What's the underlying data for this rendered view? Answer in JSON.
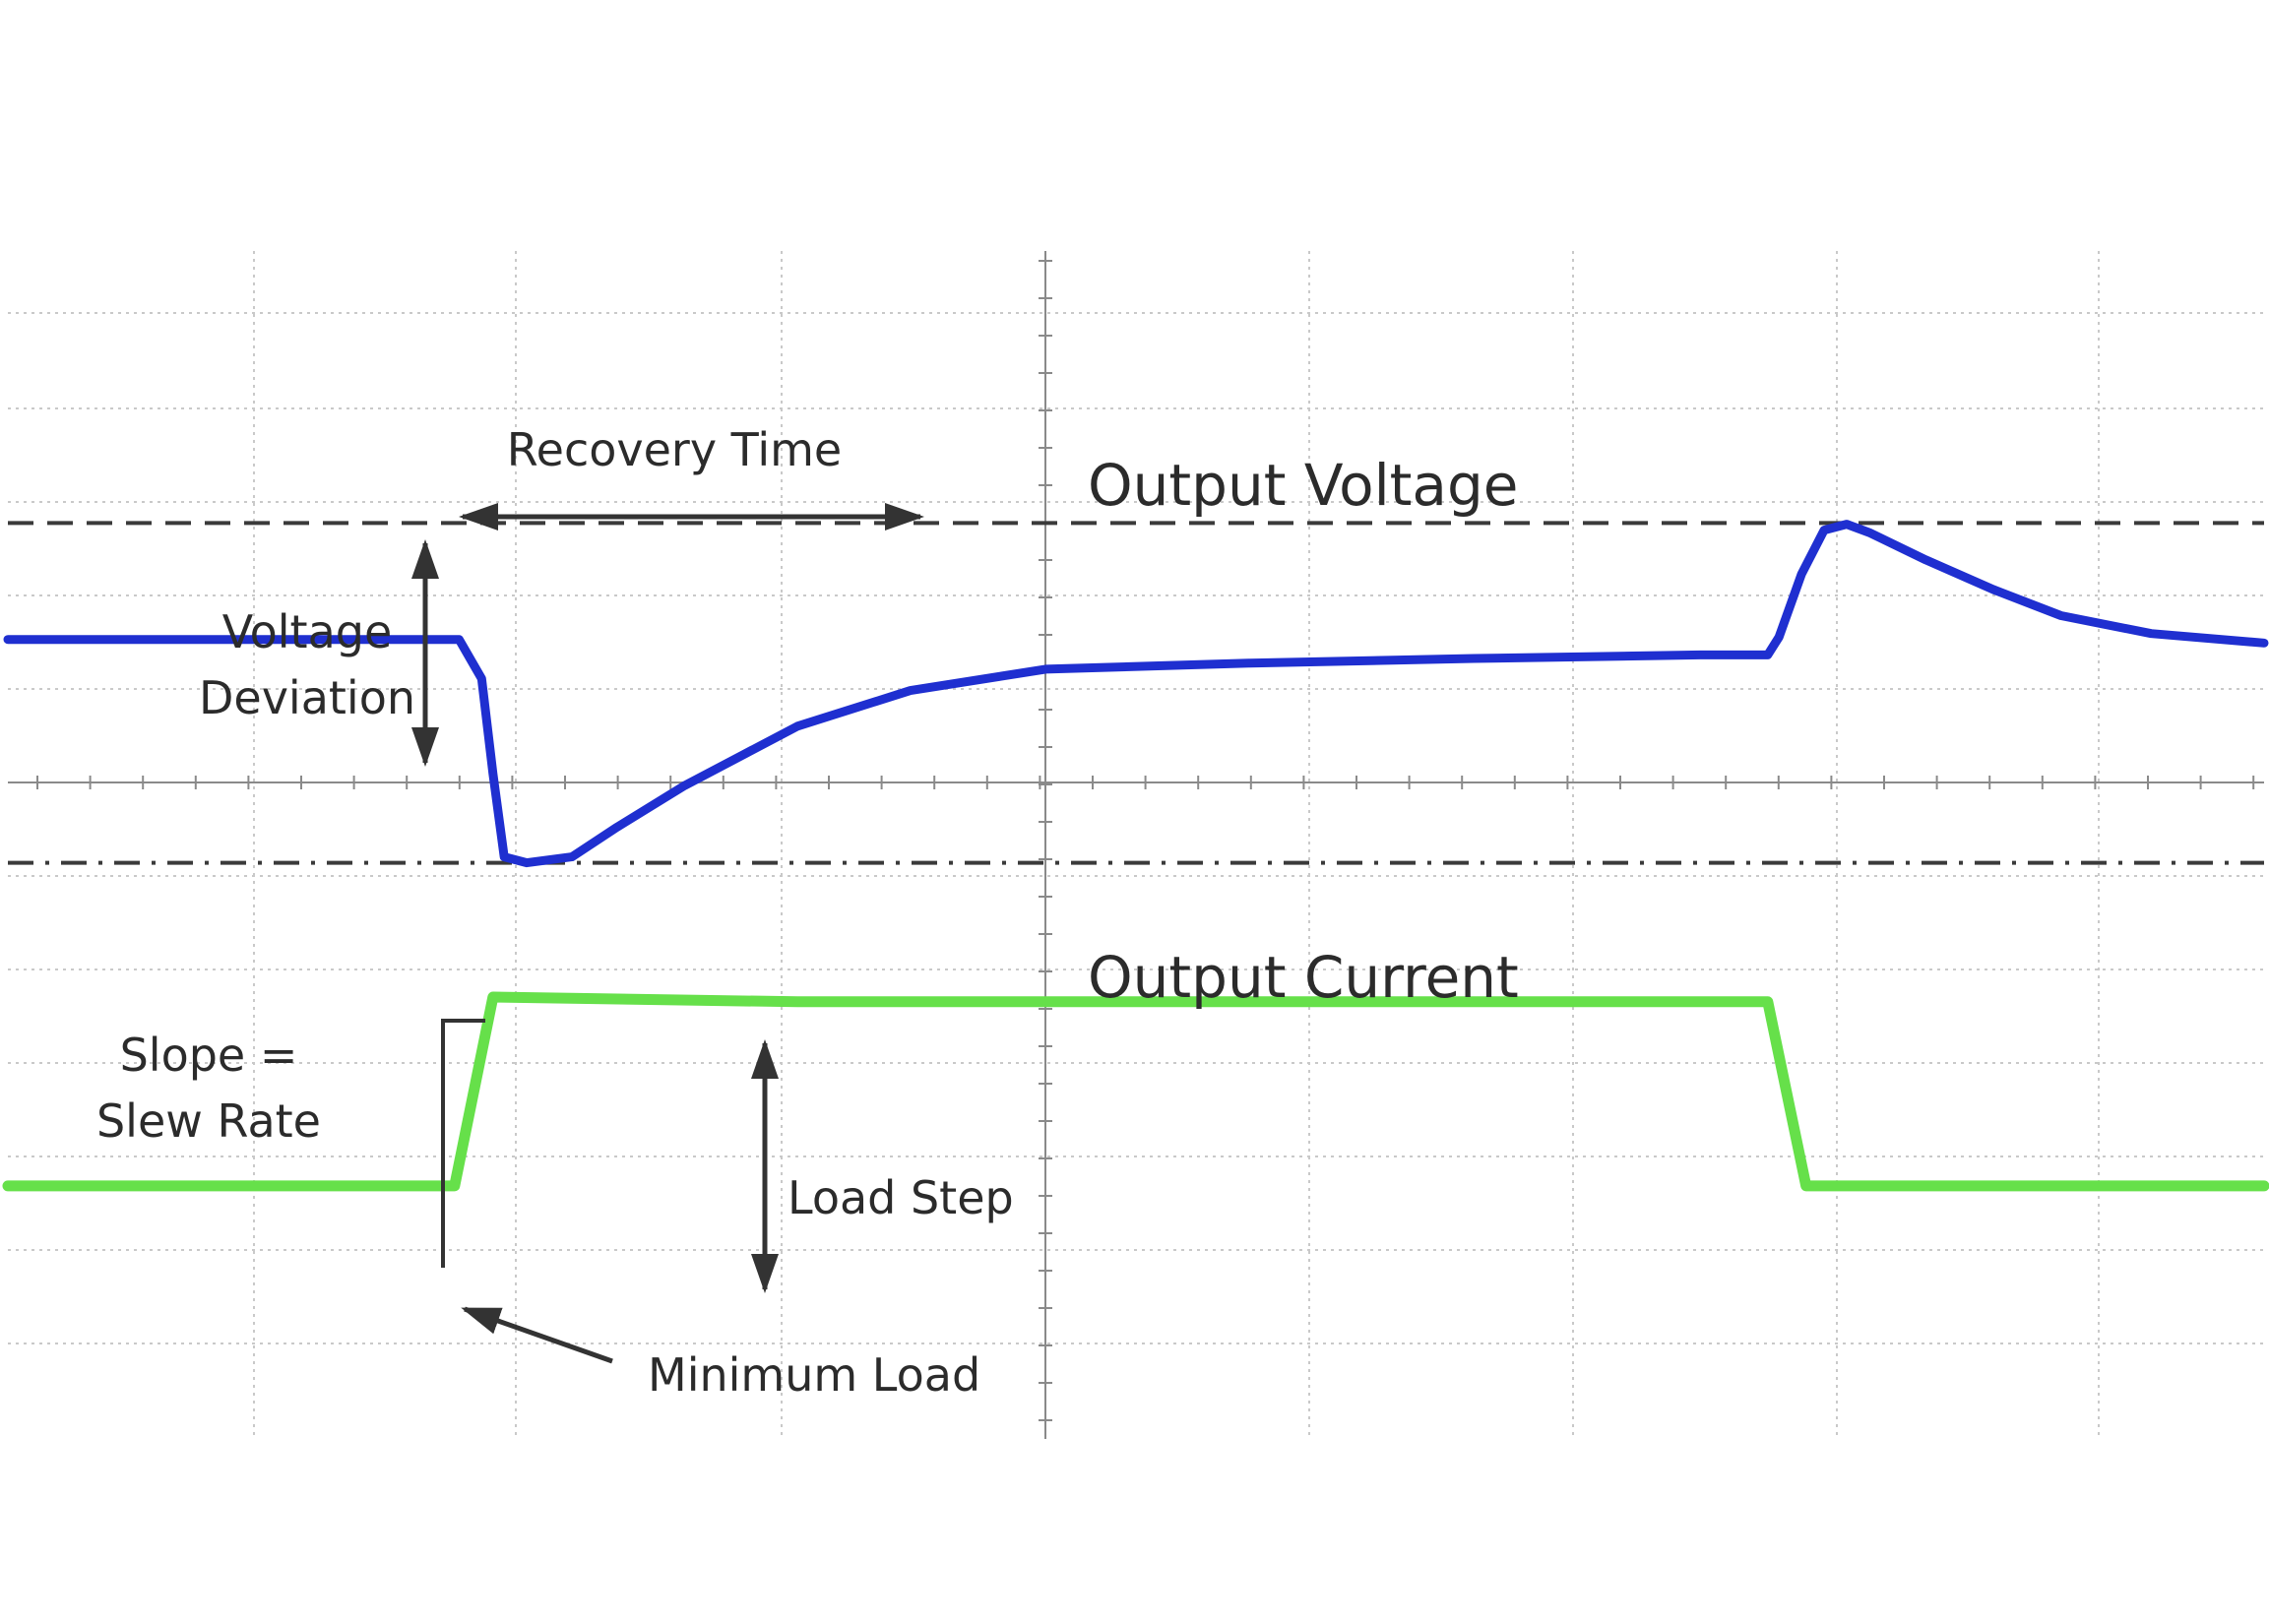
{
  "chart_data": {
    "type": "line",
    "grid": true,
    "xlim": [
      0,
      100
    ],
    "ylim": [
      0,
      100
    ],
    "series": [
      {
        "name": "Output Voltage",
        "color": "#1f2fd0",
        "x": [
          0,
          20,
          21,
          21.5,
          22,
          23,
          25,
          27,
          30,
          35,
          40,
          46,
          55,
          65,
          75,
          78,
          78.5,
          79.5,
          80.5,
          81.5,
          82.5,
          85,
          88,
          91,
          95,
          100
        ],
        "y": [
          67.3,
          67.3,
          64.0,
          56.0,
          49.0,
          48.5,
          49.0,
          51.5,
          55.0,
          60.0,
          63.0,
          64.8,
          65.3,
          65.7,
          66.0,
          66.0,
          67.5,
          72.8,
          76.5,
          77.0,
          76.3,
          74.0,
          71.5,
          69.3,
          67.8,
          67.0
        ]
      },
      {
        "name": "Output Current",
        "color": "#66e04a",
        "x": [
          0,
          19.8,
          21.5,
          35,
          55,
          78,
          79.7,
          100
        ],
        "y": [
          21.3,
          21.3,
          37.2,
          36.8,
          36.8,
          36.8,
          21.3,
          21.3
        ]
      }
    ],
    "reference_lines": [
      {
        "y": 77.1,
        "style": "dashed"
      },
      {
        "y": 48.5,
        "style": "dashdot"
      }
    ],
    "annotations": [
      {
        "id": "recovery_time",
        "text": "Recovery Time"
      },
      {
        "id": "voltage_deviation",
        "lines": [
          "Voltage",
          "Deviation"
        ]
      },
      {
        "id": "output_voltage",
        "text": "Output Voltage"
      },
      {
        "id": "output_current",
        "text": "Output Current"
      },
      {
        "id": "slew_rate",
        "lines": [
          "Slope =",
          "Slew Rate"
        ]
      },
      {
        "id": "load_step",
        "text": "Load Step"
      },
      {
        "id": "minimum_load",
        "text": "Minimum Load"
      }
    ]
  }
}
